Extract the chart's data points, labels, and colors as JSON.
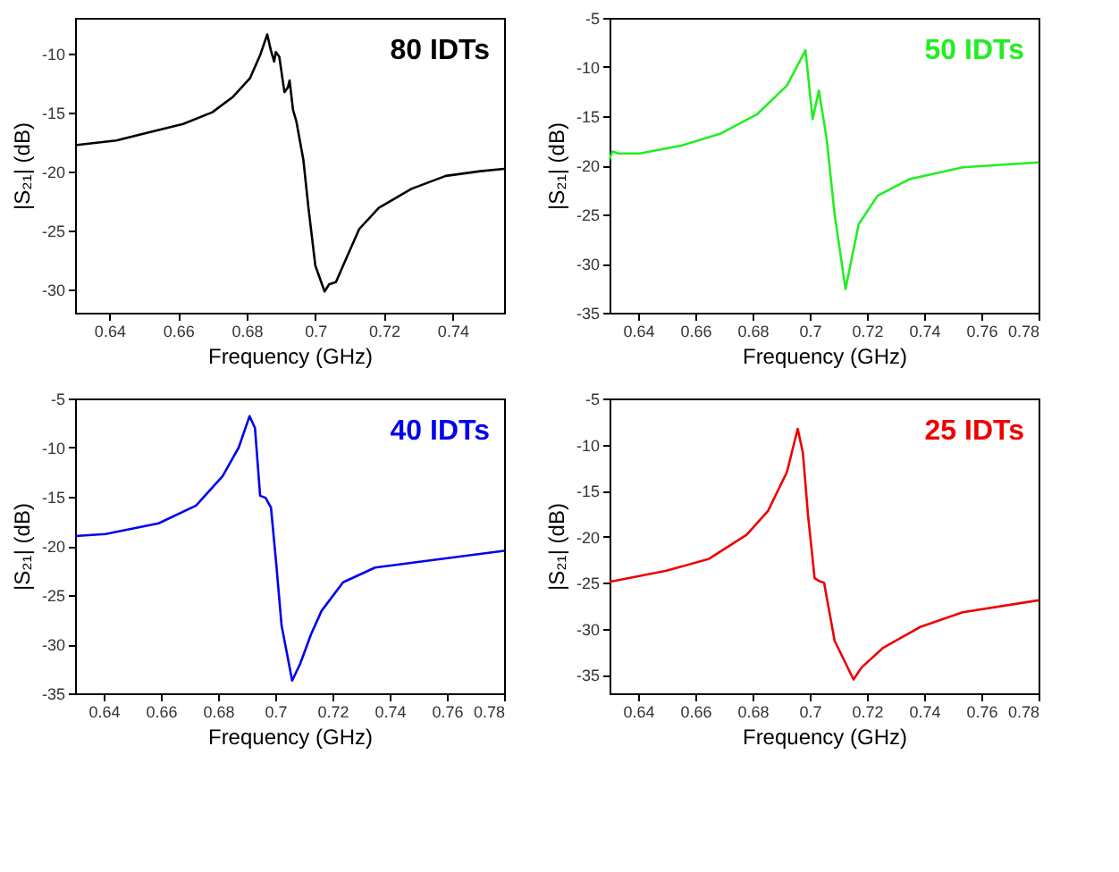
{
  "chart_data": [
    {
      "type": "line",
      "xlabel": "Frequency (GHz)",
      "ylabel": "|S₂₁| (dB)",
      "annotations": [
        "80 IDTs"
      ],
      "grid": false,
      "xlim": [
        0.63,
        0.755
      ],
      "ylim": [
        -32,
        -7
      ],
      "xticks": [
        0.64,
        0.66,
        0.68,
        0.7,
        0.72,
        0.74
      ],
      "yticks": [
        -30,
        -25,
        -20,
        -15,
        -10
      ],
      "x": [
        0.63,
        0.642,
        0.653,
        0.6615,
        0.67,
        0.676,
        0.681,
        0.684,
        0.686,
        0.687,
        0.688,
        0.6885,
        0.6895,
        0.691,
        0.692,
        0.6925,
        0.6935,
        0.6945,
        0.6965,
        0.698,
        0.7,
        0.7027,
        0.704,
        0.706,
        0.7087,
        0.7128,
        0.7185,
        0.728,
        0.738,
        0.748,
        0.755
      ],
      "series": [
        {
          "color": "#000000",
          "values": [
            -17.8,
            -17.4,
            -16.6,
            -16.0,
            -15.0,
            -13.7,
            -12.1,
            -10.1,
            -8.4,
            -9.7,
            -10.7,
            -9.9,
            -10.3,
            -13.3,
            -12.9,
            -12.3,
            -14.8,
            -15.8,
            -19.0,
            -23.1,
            -28.0,
            -30.2,
            -29.6,
            -29.4,
            -27.6,
            -24.9,
            -23.1,
            -21.5,
            -20.4,
            -20.0,
            -19.8
          ]
        }
      ]
    },
    {
      "type": "line",
      "xlabel": "Frequency (GHz)",
      "ylabel": "|S₂₁| (dB)",
      "annotations": [
        "50 IDTs"
      ],
      "grid": false,
      "xlim": [
        0.63,
        0.78
      ],
      "ylim": [
        -35,
        -5
      ],
      "xticks": [
        0.64,
        0.66,
        0.68,
        0.7,
        0.72,
        0.74,
        0.76,
        0.78
      ],
      "yticks": [
        -35,
        -30,
        -25,
        -20,
        -15,
        -10,
        -5
      ],
      "x": [
        0.63,
        0.631,
        0.633,
        0.6406,
        0.655,
        0.6686,
        0.6816,
        0.692,
        0.6985,
        0.701,
        0.7032,
        0.7059,
        0.7087,
        0.7125,
        0.7171,
        0.7237,
        0.7349,
        0.7535,
        0.78
      ],
      "series": [
        {
          "color": "#22ee22",
          "values": [
            -19.4,
            -18.6,
            -18.8,
            -18.8,
            -18.0,
            -16.8,
            -14.8,
            -11.9,
            -8.3,
            -15.3,
            -12.4,
            -17.3,
            -25.0,
            -32.6,
            -26.0,
            -23.1,
            -21.4,
            -20.2,
            -19.7
          ]
        }
      ]
    },
    {
      "type": "line",
      "xlabel": "Frequency (GHz)",
      "ylabel": "|S₂₁| (dB)",
      "annotations": [
        "40 IDTs"
      ],
      "grid": false,
      "xlim": [
        0.63,
        0.78
      ],
      "ylim": [
        -35,
        -5
      ],
      "xticks": [
        0.64,
        0.66,
        0.68,
        0.7,
        0.72,
        0.74,
        0.76,
        0.78
      ],
      "yticks": [
        -35,
        -30,
        -25,
        -20,
        -15,
        -10,
        -5
      ],
      "x": [
        0.63,
        0.6406,
        0.6592,
        0.6723,
        0.6816,
        0.6872,
        0.691,
        0.6929,
        0.6947,
        0.6966,
        0.6985,
        0.7003,
        0.7022,
        0.7059,
        0.7087,
        0.7125,
        0.7162,
        0.7237,
        0.7349,
        0.7535,
        0.78
      ],
      "series": [
        {
          "color": "#0000ee",
          "values": [
            -19.0,
            -18.8,
            -17.7,
            -15.9,
            -12.9,
            -10.0,
            -6.8,
            -8.0,
            -14.9,
            -15.1,
            -16.1,
            -21.7,
            -28.1,
            -33.7,
            -32.0,
            -29.0,
            -26.6,
            -23.7,
            -22.2,
            -21.5,
            -20.5
          ]
        }
      ]
    },
    {
      "type": "line",
      "xlabel": "Frequency (GHz)",
      "ylabel": "|S₂₁| (dB)",
      "annotations": [
        "25 IDTs"
      ],
      "grid": false,
      "xlim": [
        0.63,
        0.78
      ],
      "ylim": [
        -37,
        -5
      ],
      "xticks": [
        0.64,
        0.66,
        0.68,
        0.7,
        0.72,
        0.74,
        0.76,
        0.78
      ],
      "yticks": [
        -35,
        -30,
        -25,
        -20,
        -15,
        -10,
        -5
      ],
      "x": [
        0.63,
        0.6499,
        0.6648,
        0.6779,
        0.6854,
        0.692,
        0.6958,
        0.6976,
        0.6994,
        0.7017,
        0.7032,
        0.705,
        0.7087,
        0.7153,
        0.7181,
        0.7255,
        0.7386,
        0.7535,
        0.78
      ],
      "series": [
        {
          "color": "#ee0000",
          "values": [
            -24.9,
            -23.7,
            -22.4,
            -19.8,
            -17.2,
            -13.0,
            -8.3,
            -10.9,
            -17.7,
            -24.5,
            -24.8,
            -25.0,
            -31.3,
            -35.5,
            -34.2,
            -32.1,
            -29.8,
            -28.2,
            -26.9
          ]
        }
      ]
    }
  ]
}
